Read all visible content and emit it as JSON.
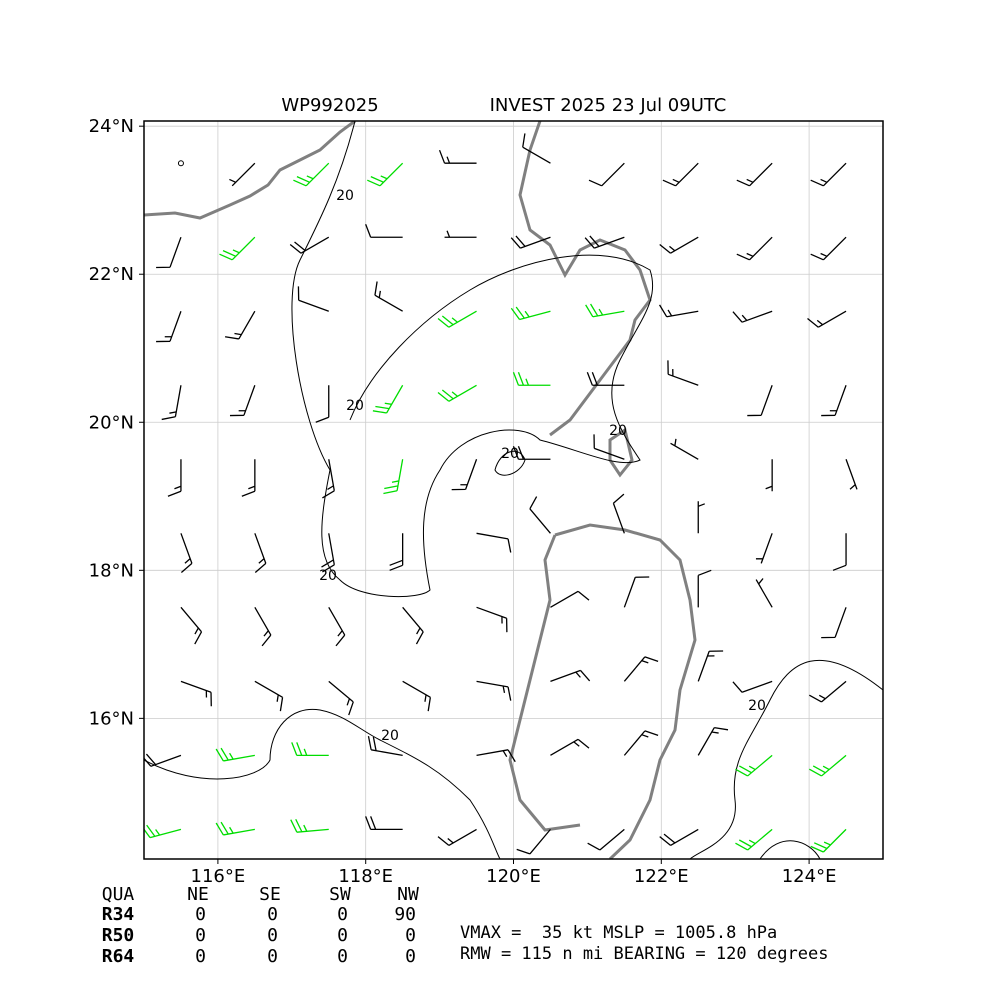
{
  "chart_data": {
    "type": "wind-barbs",
    "title_left": "WP992025",
    "title_right": "INVEST 2025 23 Jul 09UTC",
    "xlim": [
      115,
      125
    ],
    "ylim": [
      14.1,
      24.07
    ],
    "xticks": [
      {
        "value": 116,
        "label": "116°E"
      },
      {
        "value": 118,
        "label": "118°E"
      },
      {
        "value": 120,
        "label": "120°E"
      },
      {
        "value": 122,
        "label": "122°E"
      },
      {
        "value": 124,
        "label": "124°E"
      }
    ],
    "yticks": [
      {
        "value": 16,
        "label": "16°N"
      },
      {
        "value": 18,
        "label": "18°N"
      },
      {
        "value": 20,
        "label": "20°N"
      },
      {
        "value": 22,
        "label": "22°N"
      },
      {
        "value": 24,
        "label": "24°N"
      }
    ],
    "grid": true,
    "contour_level": 20,
    "barb_color": "#000000",
    "strong_color": "#00dd00",
    "strong_min": 25,
    "wind": {
      "lons": [
        115.5,
        116.5,
        117.5,
        118.5,
        119.5,
        120.5,
        121.5,
        122.5,
        123.5,
        124.5
      ],
      "lats": [
        23.5,
        22.5,
        21.5,
        20.5,
        19.5,
        18.5,
        17.5,
        16.5,
        15.5,
        14.5
      ],
      "speed": [
        [
          0,
          5,
          25,
          25,
          15,
          10,
          10,
          15,
          15,
          15
        ],
        [
          10,
          25,
          20,
          10,
          5,
          20,
          20,
          15,
          15,
          15
        ],
        [
          15,
          15,
          10,
          15,
          25,
          25,
          25,
          15,
          15,
          15
        ],
        [
          15,
          15,
          10,
          25,
          25,
          25,
          20,
          15,
          10,
          15
        ],
        [
          15,
          15,
          15,
          25,
          15,
          20,
          10,
          5,
          5,
          5
        ],
        [
          15,
          15,
          20,
          20,
          10,
          10,
          10,
          5,
          5,
          10
        ],
        [
          15,
          15,
          15,
          15,
          15,
          10,
          10,
          10,
          5,
          10
        ],
        [
          15,
          15,
          15,
          15,
          15,
          15,
          15,
          15,
          10,
          15
        ],
        [
          20,
          25,
          25,
          20,
          15,
          15,
          15,
          15,
          25,
          25
        ],
        [
          25,
          25,
          25,
          20,
          15,
          10,
          10,
          20,
          25,
          25
        ]
      ],
      "direction": [
        [
          0,
          225,
          225,
          225,
          270,
          300,
          225,
          225,
          225,
          225
        ],
        [
          200,
          225,
          240,
          270,
          270,
          250,
          250,
          240,
          225,
          225
        ],
        [
          200,
          210,
          290,
          300,
          240,
          255,
          260,
          260,
          250,
          240
        ],
        [
          190,
          200,
          180,
          210,
          240,
          270,
          270,
          290,
          200,
          200
        ],
        [
          180,
          180,
          170,
          190,
          200,
          270,
          290,
          300,
          180,
          160
        ],
        [
          160,
          160,
          170,
          180,
          100,
          320,
          340,
          0,
          200,
          180
        ],
        [
          140,
          150,
          150,
          140,
          110,
          60,
          20,
          0,
          330,
          200
        ],
        [
          110,
          120,
          130,
          120,
          100,
          70,
          40,
          20,
          250,
          230
        ],
        [
          250,
          260,
          270,
          280,
          80,
          60,
          40,
          30,
          230,
          230
        ],
        [
          255,
          260,
          265,
          270,
          240,
          220,
          230,
          240,
          230,
          225
        ]
      ]
    }
  },
  "table": {
    "header": [
      "QUA",
      "NE",
      "SE",
      "SW",
      "NW"
    ],
    "rows": [
      [
        "R34",
        0,
        0,
        0,
        90
      ],
      [
        "R50",
        0,
        0,
        0,
        0
      ],
      [
        "R64",
        0,
        0,
        0,
        0
      ]
    ]
  },
  "info": [
    "VMAX =  35 kt MSLP = 1005.8 hPa",
    "RMW = 115 n mi BEARING = 120 degrees"
  ]
}
